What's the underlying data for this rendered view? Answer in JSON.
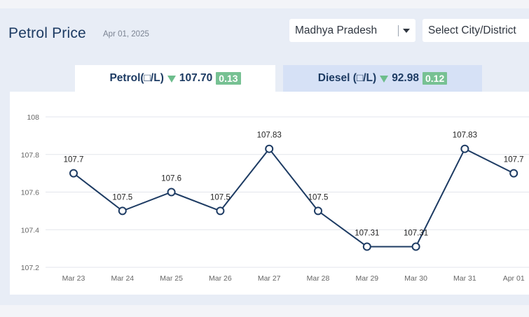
{
  "header": {
    "title": "Petrol Price",
    "date": "Apr 01, 2025",
    "state_select": "Madhya Pradesh",
    "city_select": "Select City/District"
  },
  "tabs": [
    {
      "label": "Petrol(□/L)",
      "price": "107.70",
      "change": "0.13"
    },
    {
      "label": "Diesel (□/L)",
      "price": "92.98",
      "change": "0.12"
    }
  ],
  "colors": {
    "line": "#1d3b63",
    "grid": "#e3e6ec",
    "up_indicator": "#6dbd8c",
    "title": "#1d3b63"
  },
  "chart_data": {
    "type": "line",
    "categories": [
      "Mar 23",
      "Mar 24",
      "Mar 25",
      "Mar 26",
      "Mar 27",
      "Mar 28",
      "Mar 29",
      "Mar 30",
      "Mar 31",
      "Apr 01"
    ],
    "values": [
      107.7,
      107.5,
      107.6,
      107.5,
      107.83,
      107.5,
      107.31,
      107.31,
      107.83,
      107.7
    ],
    "data_labels": [
      "107.7",
      "107.5",
      "107.6",
      "107.5",
      "107.83",
      "107.5",
      "107.31",
      "107.31",
      "107.83",
      "107.7"
    ],
    "yticks": [
      "107.2",
      "107.4",
      "107.6",
      "107.8",
      "108"
    ],
    "ylim": [
      107.2,
      108
    ],
    "grid": true,
    "markers": "hollow-circle",
    "legend": "none"
  }
}
